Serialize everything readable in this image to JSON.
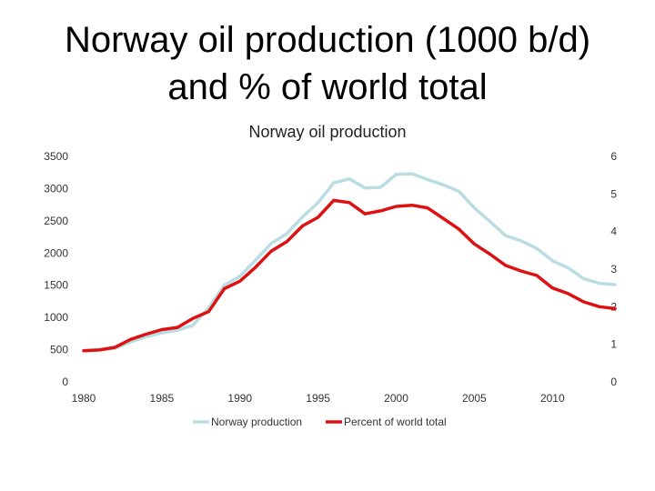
{
  "slide": {
    "title_line1": "Norway oil production (1000 b/d)",
    "title_line2": "and % of world total"
  },
  "chart_data": {
    "type": "line",
    "title": "Norway oil production",
    "xlabel": "",
    "ylabel": "",
    "x": [
      1980,
      1981,
      1982,
      1983,
      1984,
      1985,
      1986,
      1987,
      1988,
      1989,
      1990,
      1991,
      1992,
      1993,
      1994,
      1995,
      1996,
      1997,
      1998,
      1999,
      2000,
      2001,
      2002,
      2003,
      2004,
      2005,
      2006,
      2007,
      2008,
      2009,
      2010,
      2011,
      2012,
      2013,
      2014
    ],
    "xlim": [
      1980,
      2014
    ],
    "xticks": [
      "1980",
      "1985",
      "1990",
      "1995",
      "2000",
      "2005",
      "2010"
    ],
    "ylim_left": [
      0,
      3500
    ],
    "yticks_left": [
      "0",
      "500",
      "1000",
      "1500",
      "2000",
      "2500",
      "3000",
      "3500"
    ],
    "ylim_right": [
      0,
      6
    ],
    "yticks_right": [
      "0",
      "1",
      "2",
      "3",
      "4",
      "5",
      "6"
    ],
    "grid": false,
    "legend_position": "bottom",
    "series": [
      {
        "name": "Norway production",
        "axis": "left",
        "color": "#b9dde2",
        "values": [
          486,
          500,
          520,
          620,
          700,
          760,
          800,
          880,
          1150,
          1500,
          1640,
          1890,
          2150,
          2300,
          2560,
          2780,
          3090,
          3150,
          3010,
          3020,
          3220,
          3230,
          3140,
          3060,
          2960,
          2700,
          2490,
          2270,
          2190,
          2070,
          1880,
          1770,
          1600,
          1530,
          1510
        ]
      },
      {
        "name": "Percent of world total",
        "axis": "right",
        "color": "#dd1111",
        "values": [
          0.83,
          0.85,
          0.92,
          1.13,
          1.27,
          1.39,
          1.45,
          1.69,
          1.87,
          2.48,
          2.68,
          3.05,
          3.48,
          3.73,
          4.15,
          4.38,
          4.83,
          4.77,
          4.47,
          4.55,
          4.67,
          4.7,
          4.63,
          4.35,
          4.07,
          3.67,
          3.4,
          3.1,
          2.95,
          2.83,
          2.5,
          2.35,
          2.13,
          2.0,
          1.95
        ]
      }
    ]
  }
}
